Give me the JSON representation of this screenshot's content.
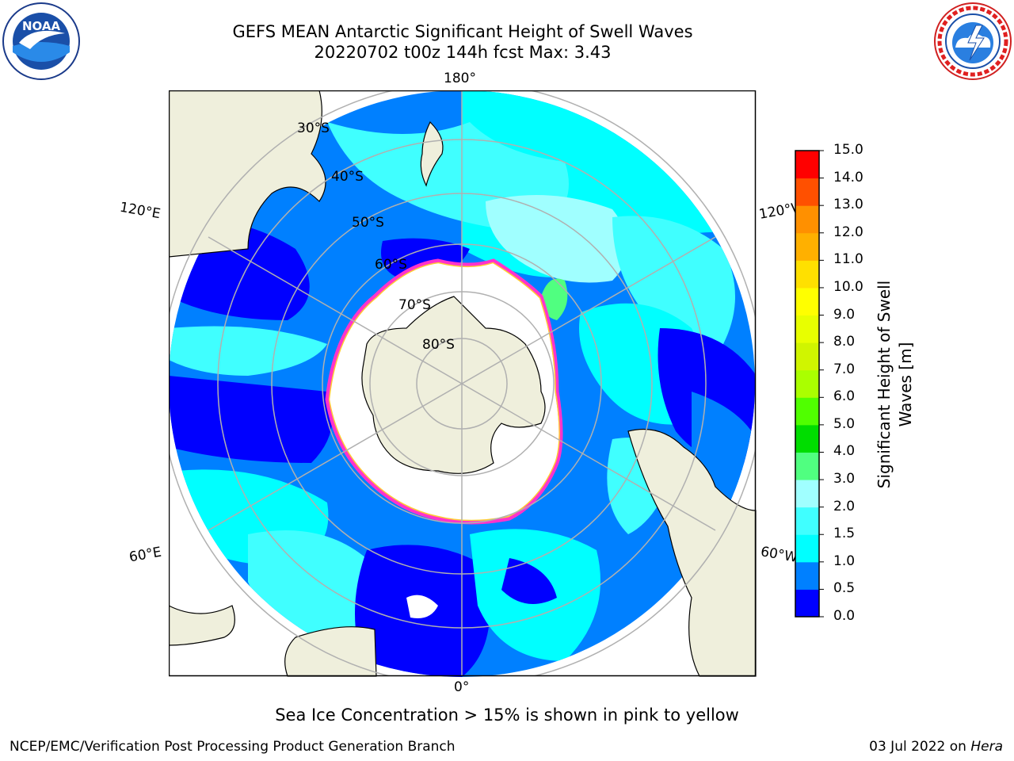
{
  "header": {
    "title_line1": "GEFS MEAN Antarctic Significant Height of Swell Waves",
    "title_line2": "20220702 t00z 144h fcst   Max: 3.43"
  },
  "logos": {
    "left": "NOAA",
    "right": "NATIONAL WEATHER SERVICE"
  },
  "map": {
    "projection": "south-polar-stereographic",
    "longitude_labels": {
      "top": "180°",
      "bottom": "0°",
      "upper_left": "120°E",
      "upper_right": "120°W",
      "lower_left": "60°E",
      "lower_right": "60°W"
    },
    "latitude_labels": [
      "30°S",
      "40°S",
      "50°S",
      "60°S",
      "70°S",
      "80°S"
    ],
    "colors": {
      "land": "#efefdc",
      "sea_ice": "#ffffff",
      "ice_edge": "#ff33cc",
      "ice_edge_inner": "#ffcc33",
      "gridline": "#b0b0b0"
    }
  },
  "colorbar": {
    "label_line1": "Significant Height of Swell",
    "label_line2": "Waves [m]",
    "ticks": [
      "15.0",
      "14.0",
      "13.0",
      "12.0",
      "11.0",
      "10.0",
      "9.0",
      "8.0",
      "7.0",
      "6.0",
      "5.0",
      "4.0",
      "3.0",
      "2.0",
      "1.5",
      "1.0",
      "0.5",
      "0.0"
    ],
    "bins": [
      {
        "min": 0.0,
        "max": 0.5,
        "color": "#0000ff"
      },
      {
        "min": 0.5,
        "max": 1.0,
        "color": "#0080ff"
      },
      {
        "min": 1.0,
        "max": 1.5,
        "color": "#00ffff"
      },
      {
        "min": 1.5,
        "max": 2.0,
        "color": "#40ffff"
      },
      {
        "min": 2.0,
        "max": 3.0,
        "color": "#a0ffff"
      },
      {
        "min": 3.0,
        "max": 4.0,
        "color": "#50ff80"
      },
      {
        "min": 4.0,
        "max": 5.0,
        "color": "#00dd00"
      },
      {
        "min": 5.0,
        "max": 6.0,
        "color": "#50ff00"
      },
      {
        "min": 6.0,
        "max": 7.0,
        "color": "#aaff00"
      },
      {
        "min": 7.0,
        "max": 8.0,
        "color": "#d0f500"
      },
      {
        "min": 8.0,
        "max": 9.0,
        "color": "#e8ff00"
      },
      {
        "min": 9.0,
        "max": 10.0,
        "color": "#ffff00"
      },
      {
        "min": 10.0,
        "max": 11.0,
        "color": "#ffe000"
      },
      {
        "min": 11.0,
        "max": 12.0,
        "color": "#ffb000"
      },
      {
        "min": 12.0,
        "max": 13.0,
        "color": "#ff9000"
      },
      {
        "min": 13.0,
        "max": 14.0,
        "color": "#ff5000"
      },
      {
        "min": 14.0,
        "max": 15.0,
        "color": "#ff0000"
      }
    ]
  },
  "caption": "Sea Ice Concentration > 15% is shown in pink to yellow",
  "footer": {
    "left": "NCEP/EMC/Verification Post Processing Product Generation Branch",
    "date": "03 Jul 2022 on ",
    "host": "Hera"
  }
}
